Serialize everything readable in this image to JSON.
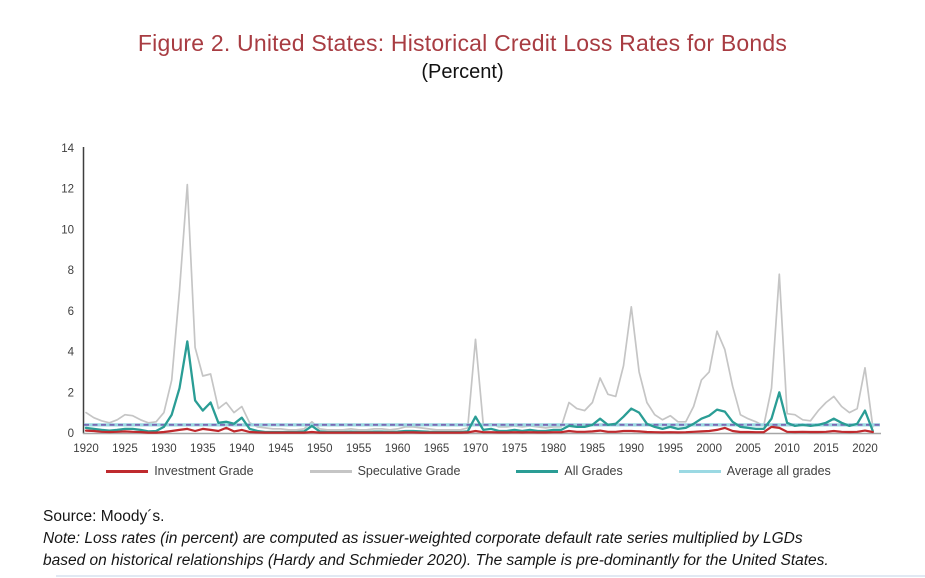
{
  "figure": {
    "title": "Figure 2. United States: Historical Credit Loss Rates for Bonds",
    "subtitle": "(Percent)",
    "title_color": "#a83c42"
  },
  "notes": {
    "source": "Source: Moody´s.",
    "note_line1": "Note: Loss rates (in percent) are computed as issuer-weighted corporate default rate series multiplied by LGDs",
    "note_line2": "based on historical relationships (Hardy and Schmieder 2020). The sample is pre-dominantly for the United States."
  },
  "chart_data": {
    "type": "line",
    "title": "Figure 2. United States: Historical Credit Loss Rates for Bonds",
    "subtitle": "(Percent)",
    "xlabel": "",
    "ylabel": "",
    "x_start": 1920,
    "x_end": 2021,
    "ylim": [
      0,
      14
    ],
    "y_ticks": [
      0,
      2,
      4,
      6,
      8,
      10,
      12,
      14
    ],
    "x_ticks": [
      1920,
      1925,
      1930,
      1935,
      1940,
      1945,
      1950,
      1955,
      1960,
      1965,
      1970,
      1975,
      1980,
      1985,
      1990,
      1995,
      2000,
      2005,
      2010,
      2015,
      2020
    ],
    "grid": false,
    "legend_position": "bottom",
    "axis_color": "#3f3f3f",
    "x_axis_line_color": "#a6a6a6",
    "series": [
      {
        "name": "Speculative Grade",
        "color": "#c5c5c5",
        "style": "solid",
        "width": 1.7,
        "values": [
          1.0,
          0.75,
          0.6,
          0.5,
          0.65,
          0.9,
          0.85,
          0.65,
          0.5,
          0.55,
          1.0,
          2.6,
          7.0,
          12.2,
          4.2,
          2.8,
          2.9,
          1.2,
          1.5,
          1.0,
          1.3,
          0.5,
          0.3,
          0.25,
          0.2,
          0.2,
          0.15,
          0.15,
          0.2,
          0.55,
          0.2,
          0.15,
          0.15,
          0.15,
          0.2,
          0.15,
          0.15,
          0.2,
          0.2,
          0.15,
          0.2,
          0.3,
          0.3,
          0.25,
          0.2,
          0.15,
          0.15,
          0.15,
          0.15,
          0.25,
          4.6,
          0.4,
          0.45,
          0.3,
          0.3,
          0.35,
          0.3,
          0.35,
          0.3,
          0.25,
          0.3,
          0.3,
          1.5,
          1.2,
          1.1,
          1.5,
          2.7,
          1.9,
          1.8,
          3.3,
          6.2,
          3.0,
          1.5,
          0.9,
          0.65,
          0.85,
          0.55,
          0.55,
          1.3,
          2.6,
          3.0,
          5.0,
          4.1,
          2.3,
          0.9,
          0.7,
          0.55,
          0.35,
          2.2,
          7.8,
          0.95,
          0.9,
          0.65,
          0.6,
          1.1,
          1.5,
          1.8,
          1.3,
          1.0,
          1.2,
          3.2,
          0.3
        ]
      },
      {
        "name": "All Grades",
        "color": "#2a9d95",
        "style": "solid",
        "width": 2.3,
        "values": [
          0.25,
          0.2,
          0.15,
          0.12,
          0.15,
          0.2,
          0.2,
          0.15,
          0.08,
          0.1,
          0.3,
          0.9,
          2.2,
          4.5,
          1.6,
          1.1,
          1.5,
          0.5,
          0.55,
          0.45,
          0.75,
          0.2,
          0.1,
          0.05,
          0.05,
          0.05,
          0.05,
          0.05,
          0.08,
          0.35,
          0.08,
          0.05,
          0.05,
          0.05,
          0.07,
          0.05,
          0.05,
          0.07,
          0.07,
          0.05,
          0.07,
          0.1,
          0.1,
          0.08,
          0.06,
          0.05,
          0.05,
          0.05,
          0.05,
          0.08,
          0.8,
          0.15,
          0.2,
          0.1,
          0.1,
          0.15,
          0.1,
          0.15,
          0.1,
          0.1,
          0.15,
          0.15,
          0.35,
          0.3,
          0.3,
          0.4,
          0.7,
          0.4,
          0.45,
          0.8,
          1.2,
          1.0,
          0.45,
          0.3,
          0.2,
          0.3,
          0.2,
          0.25,
          0.45,
          0.7,
          0.85,
          1.15,
          1.05,
          0.55,
          0.3,
          0.25,
          0.2,
          0.2,
          0.7,
          2.0,
          0.5,
          0.35,
          0.4,
          0.35,
          0.4,
          0.5,
          0.7,
          0.5,
          0.35,
          0.45,
          1.1,
          0.1
        ]
      },
      {
        "name": "Investment Grade",
        "color": "#bf2a2e",
        "style": "solid",
        "width": 2.2,
        "values": [
          0.12,
          0.1,
          0.06,
          0.05,
          0.06,
          0.08,
          0.06,
          0.05,
          0.02,
          0.02,
          0.05,
          0.1,
          0.15,
          0.2,
          0.1,
          0.2,
          0.15,
          0.1,
          0.25,
          0.08,
          0.15,
          0.05,
          0.03,
          0.02,
          0.02,
          0.02,
          0.02,
          0.02,
          0.02,
          0.05,
          0.02,
          0.02,
          0.02,
          0.02,
          0.02,
          0.02,
          0.02,
          0.02,
          0.02,
          0.02,
          0.02,
          0.03,
          0.03,
          0.02,
          0.02,
          0.02,
          0.02,
          0.02,
          0.02,
          0.03,
          0.1,
          0.04,
          0.04,
          0.03,
          0.03,
          0.04,
          0.03,
          0.04,
          0.03,
          0.03,
          0.04,
          0.04,
          0.1,
          0.06,
          0.06,
          0.08,
          0.12,
          0.06,
          0.06,
          0.1,
          0.1,
          0.08,
          0.05,
          0.04,
          0.03,
          0.04,
          0.03,
          0.04,
          0.06,
          0.08,
          0.1,
          0.15,
          0.25,
          0.1,
          0.05,
          0.05,
          0.04,
          0.04,
          0.3,
          0.25,
          0.06,
          0.05,
          0.06,
          0.05,
          0.05,
          0.06,
          0.1,
          0.06,
          0.05,
          0.06,
          0.12,
          0.05
        ]
      },
      {
        "name": "Average all grades",
        "color": "#9bd9e3",
        "style": "solid",
        "width": 3.2,
        "constant": 0.4
      },
      {
        "name": "average-reference-dashed",
        "color": "#7b68b4",
        "style": "dashed",
        "width": 1.9,
        "constant": 0.4,
        "in_legend": false
      }
    ],
    "legend": [
      {
        "label": "Investment Grade",
        "color": "#bf2a2e"
      },
      {
        "label": "Speculative Grade",
        "color": "#c5c5c5"
      },
      {
        "label": "All Grades",
        "color": "#2a9d95"
      },
      {
        "label": "Average all grades",
        "color": "#9bd9e3"
      }
    ]
  }
}
